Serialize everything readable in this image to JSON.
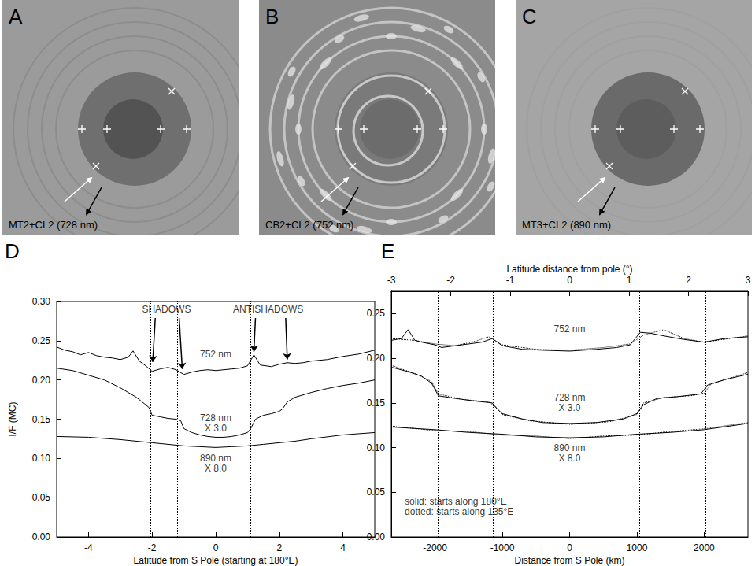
{
  "images": [
    {
      "letter": "A",
      "caption": "MT2+CL2 (728 nm)"
    },
    {
      "letter": "B",
      "caption": "CB2+CL2 (752 nm)"
    },
    {
      "letter": "C",
      "caption": "MT3+CL2 (890 nm)"
    }
  ],
  "chart_data": [
    {
      "type": "line",
      "panel": "D",
      "x_label": "Latitude from S Pole (starting at 180°E)",
      "y_label": "I/F (MC)",
      "xlim": [
        -5,
        5
      ],
      "xticks": [
        -4,
        -2,
        0,
        2,
        4
      ],
      "ylim": [
        0,
        0.3
      ],
      "yticks": [
        {
          "value": 0,
          "label": "0.00"
        },
        {
          "value": 0.05,
          "label": "0.05"
        },
        {
          "value": 0.1,
          "label": "0.10"
        },
        {
          "value": 0.15,
          "label": "0.15"
        },
        {
          "value": 0.2,
          "label": "0.20"
        },
        {
          "value": 0.25,
          "label": "0.25"
        },
        {
          "value": 0.3,
          "label": "0.30"
        }
      ],
      "vlines": [
        -2.05,
        -1.2,
        1.1,
        2.1
      ],
      "annotations": [
        {
          "text": "SHADOWS",
          "at": [
            -1.55,
            0.29
          ],
          "arrows": [
            [
              [
                -1.9,
                0.279
              ],
              [
                -1.98,
                0.223
              ]
            ],
            [
              [
                -1.15,
                0.279
              ],
              [
                -1.05,
                0.214
              ]
            ]
          ]
        },
        {
          "text": "ANTISHADOWS",
          "at": [
            1.65,
            0.29
          ],
          "arrows": [
            [
              [
                1.25,
                0.279
              ],
              [
                1.2,
                0.236
              ]
            ],
            [
              [
                2.2,
                0.279
              ],
              [
                2.25,
                0.226
              ]
            ]
          ]
        }
      ],
      "series": [
        {
          "name": "752 nm",
          "color": "#000000",
          "line_style": "solid",
          "label_at": [
            0,
            0.233
          ],
          "x": [
            -5,
            -4.75,
            -4.5,
            -4.25,
            -4,
            -3.75,
            -3.5,
            -3.25,
            -3,
            -2.75,
            -2.6,
            -2.4,
            -2.2,
            -2,
            -1.75,
            -1.5,
            -1.25,
            -1,
            -0.75,
            -0.5,
            -0.25,
            0,
            0.25,
            0.5,
            0.75,
            1,
            1.2,
            1.4,
            1.75,
            2,
            2.25,
            2.5,
            2.75,
            3,
            3.5,
            4,
            4.5,
            5
          ],
          "values": [
            0.242,
            0.238,
            0.236,
            0.232,
            0.235,
            0.231,
            0.229,
            0.228,
            0.226,
            0.229,
            0.237,
            0.224,
            0.218,
            0.211,
            0.214,
            0.216,
            0.213,
            0.207,
            0.21,
            0.212,
            0.213,
            0.212,
            0.213,
            0.214,
            0.215,
            0.218,
            0.232,
            0.219,
            0.217,
            0.22,
            0.222,
            0.221,
            0.222,
            0.224,
            0.226,
            0.23,
            0.233,
            0.238
          ]
        },
        {
          "name": "728 nm",
          "multiplier_label": "X 3.0",
          "color": "#000000",
          "line_style": "solid",
          "label_at": [
            0,
            0.145
          ],
          "x": [
            -5,
            -4.5,
            -4,
            -3.5,
            -3,
            -2.5,
            -2.25,
            -2.1,
            -2,
            -1.75,
            -1.5,
            -1.25,
            -1.1,
            -1,
            -0.75,
            -0.5,
            -0.25,
            0,
            0.25,
            0.5,
            0.75,
            1,
            1.1,
            1.25,
            1.5,
            1.75,
            2,
            2.1,
            2.25,
            2.5,
            3,
            3.5,
            4,
            4.5,
            5
          ],
          "values": [
            0.215,
            0.212,
            0.206,
            0.2,
            0.19,
            0.178,
            0.17,
            0.165,
            0.155,
            0.153,
            0.151,
            0.15,
            0.148,
            0.138,
            0.133,
            0.13,
            0.128,
            0.127,
            0.127,
            0.128,
            0.13,
            0.133,
            0.138,
            0.15,
            0.155,
            0.157,
            0.16,
            0.163,
            0.172,
            0.178,
            0.184,
            0.189,
            0.193,
            0.196,
            0.2
          ]
        },
        {
          "name": "890 nm",
          "multiplier_label": "X 8.0",
          "color": "#000000",
          "line_style": "solid",
          "label_at": [
            0,
            0.094
          ],
          "x": [
            -5,
            -4,
            -3,
            -2.5,
            -2,
            -1.5,
            -1,
            -0.5,
            0,
            0.5,
            1,
            1.5,
            2,
            2.5,
            3,
            4,
            5
          ],
          "values": [
            0.128,
            0.127,
            0.124,
            0.122,
            0.12,
            0.118,
            0.116,
            0.115,
            0.114,
            0.115,
            0.116,
            0.118,
            0.12,
            0.122,
            0.125,
            0.13,
            0.133
          ]
        }
      ]
    },
    {
      "type": "line",
      "panel": "E",
      "x_label": "Distance from S Pole (km)",
      "x2_label": "Latitude distance from pole (°)",
      "xlim": [
        -2650,
        2650
      ],
      "xticks": [
        -2000,
        -1000,
        0,
        1000,
        2000
      ],
      "x2lim": [
        -3,
        3
      ],
      "x2ticks": [
        -3,
        -2,
        -1,
        0,
        1,
        2,
        3
      ],
      "ylim": [
        0,
        0.275
      ],
      "yticks": [
        {
          "value": 0,
          "label": "0.00"
        },
        {
          "value": 0.05,
          "label": "0.05"
        },
        {
          "value": 0.1,
          "label": "0.10"
        },
        {
          "value": 0.15,
          "label": "0.15"
        },
        {
          "value": 0.2,
          "label": "0.20"
        },
        {
          "value": 0.25,
          "label": "0.25"
        }
      ],
      "vlines": [
        -1960,
        -1140,
        1040,
        2020
      ],
      "notes": [
        {
          "text": "solid: starts along 180°E",
          "at": [
            -2450,
            0.04
          ]
        },
        {
          "text": "dotted: starts along 135°E",
          "at": [
            -2450,
            0.028
          ]
        }
      ],
      "series": [
        {
          "name": "752 nm",
          "color": "#000000",
          "line_style": "solid",
          "label_at": [
            0,
            0.233
          ],
          "x": [
            -2650,
            -2500,
            -2400,
            -2300,
            -2200,
            -2000,
            -1900,
            -1600,
            -1300,
            -1150,
            -1000,
            -700,
            -400,
            0,
            400,
            700,
            900,
            1050,
            1200,
            1400,
            1700,
            2000,
            2300,
            2650
          ],
          "values": [
            0.22,
            0.222,
            0.232,
            0.22,
            0.218,
            0.215,
            0.212,
            0.215,
            0.218,
            0.222,
            0.214,
            0.21,
            0.209,
            0.208,
            0.21,
            0.212,
            0.215,
            0.229,
            0.228,
            0.225,
            0.221,
            0.218,
            0.222,
            0.224
          ]
        },
        {
          "color": "#000000",
          "line_style": "dotted",
          "x": [
            -2650,
            -2300,
            -2000,
            -1700,
            -1400,
            -1200,
            -1000,
            -500,
            0,
            500,
            900,
            1100,
            1400,
            1700,
            2000,
            2650
          ],
          "values": [
            0.222,
            0.22,
            0.216,
            0.214,
            0.219,
            0.224,
            0.215,
            0.21,
            0.209,
            0.212,
            0.216,
            0.226,
            0.232,
            0.222,
            0.218,
            0.225
          ]
        },
        {
          "name": "728 nm",
          "multiplier_label": "X 3.0",
          "color": "#000000",
          "line_style": "solid",
          "label_at": [
            0,
            0.15
          ],
          "x": [
            -2650,
            -2400,
            -2200,
            -2050,
            -1950,
            -1700,
            -1400,
            -1150,
            -1100,
            -1000,
            -700,
            -400,
            0,
            400,
            800,
            1000,
            1100,
            1300,
            1600,
            1950,
            2050,
            2300,
            2650
          ],
          "values": [
            0.19,
            0.185,
            0.18,
            0.172,
            0.158,
            0.155,
            0.152,
            0.15,
            0.145,
            0.138,
            0.132,
            0.128,
            0.127,
            0.128,
            0.132,
            0.138,
            0.148,
            0.155,
            0.157,
            0.16,
            0.17,
            0.176,
            0.182
          ]
        },
        {
          "color": "#000000",
          "line_style": "dotted",
          "x": [
            -2650,
            -2300,
            -2050,
            -1950,
            -1600,
            -1200,
            -1100,
            -1000,
            -600,
            0,
            600,
            1000,
            1100,
            1400,
            1800,
            2000,
            2100,
            2650
          ],
          "values": [
            0.192,
            0.183,
            0.174,
            0.16,
            0.154,
            0.151,
            0.146,
            0.137,
            0.13,
            0.126,
            0.129,
            0.137,
            0.15,
            0.156,
            0.158,
            0.161,
            0.171,
            0.184
          ]
        },
        {
          "name": "890 nm",
          "multiplier_label": "X 8.0",
          "color": "#000000",
          "line_style": "solid",
          "label_at": [
            0,
            0.094
          ],
          "x": [
            -2650,
            -2000,
            -1500,
            -1000,
            -500,
            0,
            500,
            1000,
            1500,
            2000,
            2650
          ],
          "values": [
            0.123,
            0.12,
            0.117,
            0.115,
            0.112,
            0.111,
            0.112,
            0.115,
            0.117,
            0.12,
            0.127
          ]
        },
        {
          "color": "#000000",
          "line_style": "dotted",
          "x": [
            -2650,
            -2000,
            -1500,
            -1000,
            -500,
            0,
            500,
            1000,
            1500,
            2000,
            2650
          ],
          "values": [
            0.124,
            0.119,
            0.118,
            0.114,
            0.113,
            0.11,
            0.113,
            0.114,
            0.118,
            0.121,
            0.128
          ]
        }
      ]
    }
  ]
}
